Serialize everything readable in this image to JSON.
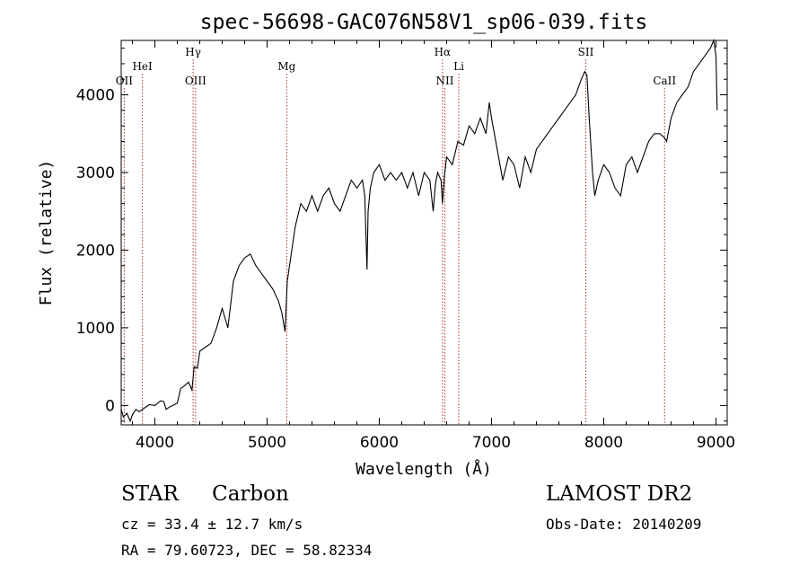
{
  "chart_data": {
    "type": "line",
    "title": "spec-56698-GAC076N58V1_sp06-039.fits",
    "xlabel": "Wavelength (Å)",
    "ylabel": "Flux (relative)",
    "xlim": [
      3700,
      9100
    ],
    "ylim": [
      -250,
      4700
    ],
    "xticks": [
      4000,
      5000,
      6000,
      7000,
      8000,
      9000
    ],
    "yticks": [
      0,
      1000,
      2000,
      3000,
      4000
    ],
    "series": [
      {
        "x": [
          3700,
          3720,
          3750,
          3780,
          3800,
          3830,
          3860,
          3900,
          3950,
          4000,
          4050,
          4080,
          4100,
          4130,
          4160,
          4200,
          4230,
          4260,
          4300,
          4330,
          4350,
          4380,
          4400,
          4450,
          4500,
          4550,
          4600,
          4650,
          4700,
          4750,
          4800,
          4850,
          4900,
          4950,
          5000,
          5050,
          5100,
          5130,
          5160,
          5180,
          5200,
          5220,
          5250,
          5300,
          5350,
          5400,
          5450,
          5500,
          5550,
          5600,
          5650,
          5700,
          5750,
          5800,
          5850,
          5870,
          5890,
          5900,
          5920,
          5950,
          6000,
          6050,
          6100,
          6150,
          6200,
          6250,
          6300,
          6350,
          6400,
          6450,
          6480,
          6500,
          6520,
          6550,
          6563,
          6580,
          6600,
          6650,
          6700,
          6750,
          6800,
          6850,
          6900,
          6950,
          6980,
          7000,
          7050,
          7100,
          7150,
          7200,
          7250,
          7300,
          7350,
          7400,
          7450,
          7500,
          7550,
          7600,
          7650,
          7700,
          7750,
          7800,
          7830,
          7850,
          7870,
          7900,
          7920,
          7950,
          8000,
          8050,
          8100,
          8150,
          8200,
          8250,
          8300,
          8350,
          8400,
          8450,
          8500,
          8540,
          8560,
          8600,
          8650,
          8700,
          8750,
          8800,
          8850,
          8900,
          8950,
          8980,
          9000,
          9010
        ],
        "y": [
          -50,
          -150,
          -100,
          -200,
          -120,
          -50,
          -80,
          -40,
          10,
          0,
          60,
          50,
          -50,
          -20,
          0,
          30,
          220,
          250,
          300,
          200,
          500,
          480,
          700,
          750,
          800,
          1000,
          1250,
          1000,
          1600,
          1800,
          1900,
          1950,
          1800,
          1700,
          1600,
          1500,
          1350,
          1200,
          950,
          1600,
          1800,
          2000,
          2300,
          2600,
          2500,
          2700,
          2500,
          2700,
          2800,
          2600,
          2500,
          2700,
          2900,
          2800,
          2900,
          2700,
          1750,
          2500,
          2800,
          3000,
          3100,
          2900,
          3000,
          2900,
          3000,
          2800,
          3000,
          2700,
          3000,
          2900,
          2500,
          2850,
          3000,
          2900,
          2600,
          2950,
          3200,
          3100,
          3400,
          3350,
          3600,
          3500,
          3700,
          3500,
          3900,
          3700,
          3300,
          2900,
          3200,
          3100,
          2800,
          3200,
          3000,
          3300,
          3400,
          3500,
          3600,
          3700,
          3800,
          3900,
          4000,
          4200,
          4300,
          4250,
          3700,
          3000,
          2700,
          2900,
          3100,
          3000,
          2800,
          2700,
          3100,
          3200,
          3000,
          3200,
          3400,
          3500,
          3500,
          3450,
          3400,
          3700,
          3900,
          4000,
          4100,
          4300,
          4400,
          4500,
          4600,
          4700,
          4500,
          3800
        ]
      }
    ],
    "line_markers": [
      {
        "label": "OII",
        "x": 3727,
        "row": "low"
      },
      {
        "label": "HeI",
        "x": 3889,
        "row": "mid"
      },
      {
        "label": "Hγ",
        "x": 4341,
        "row": "high"
      },
      {
        "label": "OIII",
        "x": 4363,
        "row": "low"
      },
      {
        "label": "Mg",
        "x": 5175,
        "row": "mid"
      },
      {
        "label": "Hα",
        "x": 6563,
        "row": "high"
      },
      {
        "label": "NII",
        "x": 6584,
        "row": "low"
      },
      {
        "label": "Li",
        "x": 6708,
        "row": "mid"
      },
      {
        "label": "SII",
        "x": 7840,
        "row": "high"
      },
      {
        "label": "CaII",
        "x": 8542,
        "row": "low"
      }
    ],
    "grid": false,
    "legend": "none"
  },
  "info": {
    "class_label": "STAR",
    "subclass_label": "Carbon",
    "survey": "LAMOST DR2",
    "redshift": "cz = 33.4 ± 12.7 km/s",
    "obs_date": "Obs-Date: 20140209",
    "coordinates": "RA =  79.60723, DEC =  58.82334"
  },
  "colors": {
    "spectrum": "#000000",
    "marker_line": "#b03030",
    "axes": "#000000"
  }
}
